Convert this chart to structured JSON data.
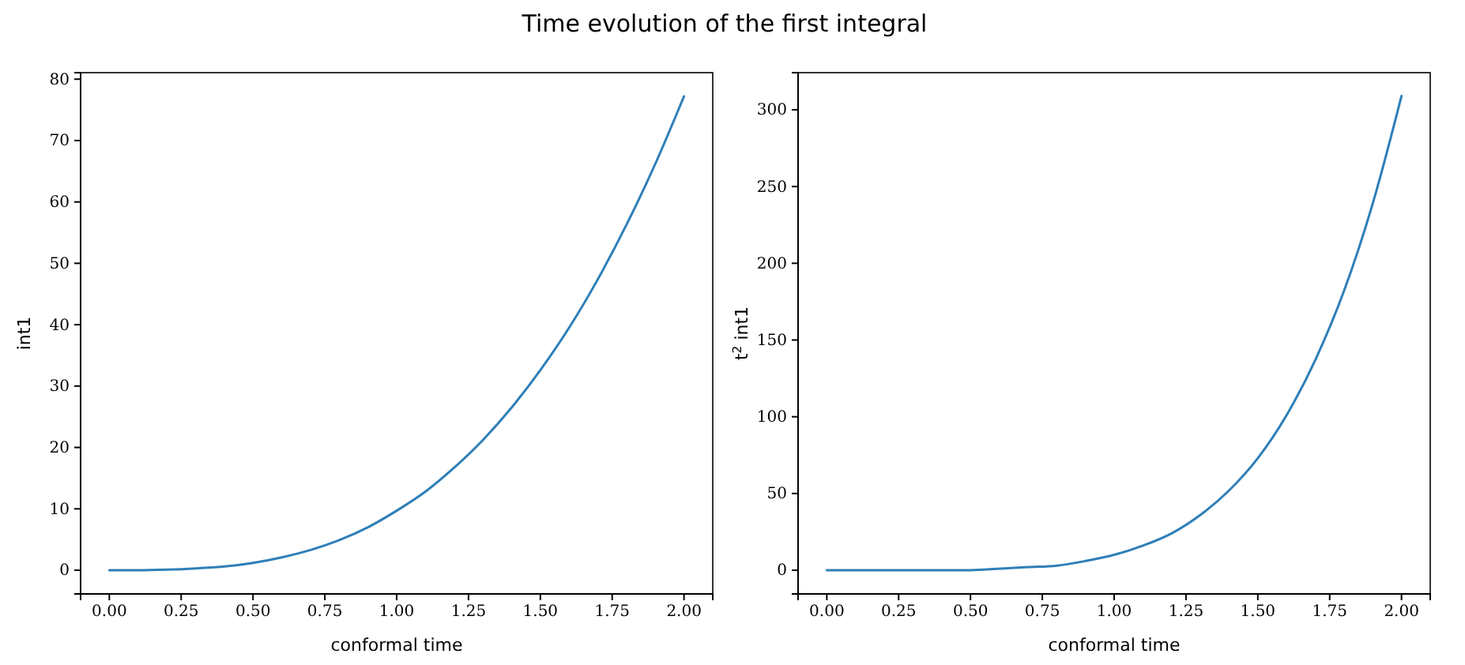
{
  "chart_data": [
    {
      "type": "line",
      "title": "Time evolution of the first integral",
      "xlabel": "conformal time",
      "ylabel": "int1",
      "x": [
        0,
        0.1,
        0.2,
        0.3,
        0.4,
        0.5,
        0.6,
        0.7,
        0.8,
        0.9,
        1.0,
        1.1,
        1.2,
        1.3,
        1.4,
        1.5,
        1.6,
        1.7,
        1.8,
        1.9,
        2.0
      ],
      "series": [
        {
          "color": "#2e7fb8",
          "values": [
            0,
            0,
            0.1,
            0.3,
            0.6,
            1.2,
            2.1,
            3.3,
            4.9,
            7.0,
            9.7,
            12.8,
            16.7,
            21.2,
            26.5,
            32.6,
            39.5,
            47.4,
            56.3,
            66.2,
            77.2
          ]
        }
      ],
      "xlim": [
        -0.1,
        2.1
      ],
      "xticks": [
        {
          "value": 0,
          "label": "0.00"
        },
        {
          "value": 0.25,
          "label": "0.25"
        },
        {
          "value": 0.5,
          "label": "0.50"
        },
        {
          "value": 0.75,
          "label": "0.75"
        },
        {
          "value": 1,
          "label": "1.00"
        },
        {
          "value": 1.25,
          "label": "1.25"
        },
        {
          "value": 1.5,
          "label": "1.50"
        },
        {
          "value": 1.75,
          "label": "1.75"
        },
        {
          "value": 2,
          "label": "2.00"
        }
      ],
      "ylim": [
        -3.86,
        81.06
      ],
      "yticks": [
        0,
        10,
        20,
        30,
        40,
        50,
        60,
        70,
        80
      ],
      "grid": false
    },
    {
      "type": "line",
      "xlabel": "conformal time",
      "ylabel": "t$^{2}$ int1",
      "x": [
        0,
        0.1,
        0.2,
        0.3,
        0.4,
        0.5,
        0.6,
        0.7,
        0.8,
        0.9,
        1.0,
        1.1,
        1.2,
        1.3,
        1.4,
        1.5,
        1.6,
        1.7,
        1.8,
        1.9,
        2.0
      ],
      "series": [
        {
          "color": "#2e7fb8",
          "values": [
            0,
            0,
            0,
            0,
            0,
            0,
            1,
            2,
            3,
            6,
            10,
            16,
            24,
            36,
            52,
            73,
            101,
            137,
            182,
            239,
            309
          ]
        }
      ],
      "xlim": [
        -0.1,
        2.1
      ],
      "xticks": [
        {
          "value": 0,
          "label": "0.00"
        },
        {
          "value": 0.25,
          "label": "0.25"
        },
        {
          "value": 0.5,
          "label": "0.50"
        },
        {
          "value": 0.75,
          "label": "0.75"
        },
        {
          "value": 1,
          "label": "1.00"
        },
        {
          "value": 1.25,
          "label": "1.25"
        },
        {
          "value": 1.5,
          "label": "1.50"
        },
        {
          "value": 1.75,
          "label": "1.75"
        },
        {
          "value": 2,
          "label": "2.00"
        }
      ],
      "ylim": [
        -15.44,
        324.2
      ],
      "yticks": [
        0,
        50,
        100,
        150,
        200,
        250,
        300
      ],
      "grid": false
    }
  ]
}
